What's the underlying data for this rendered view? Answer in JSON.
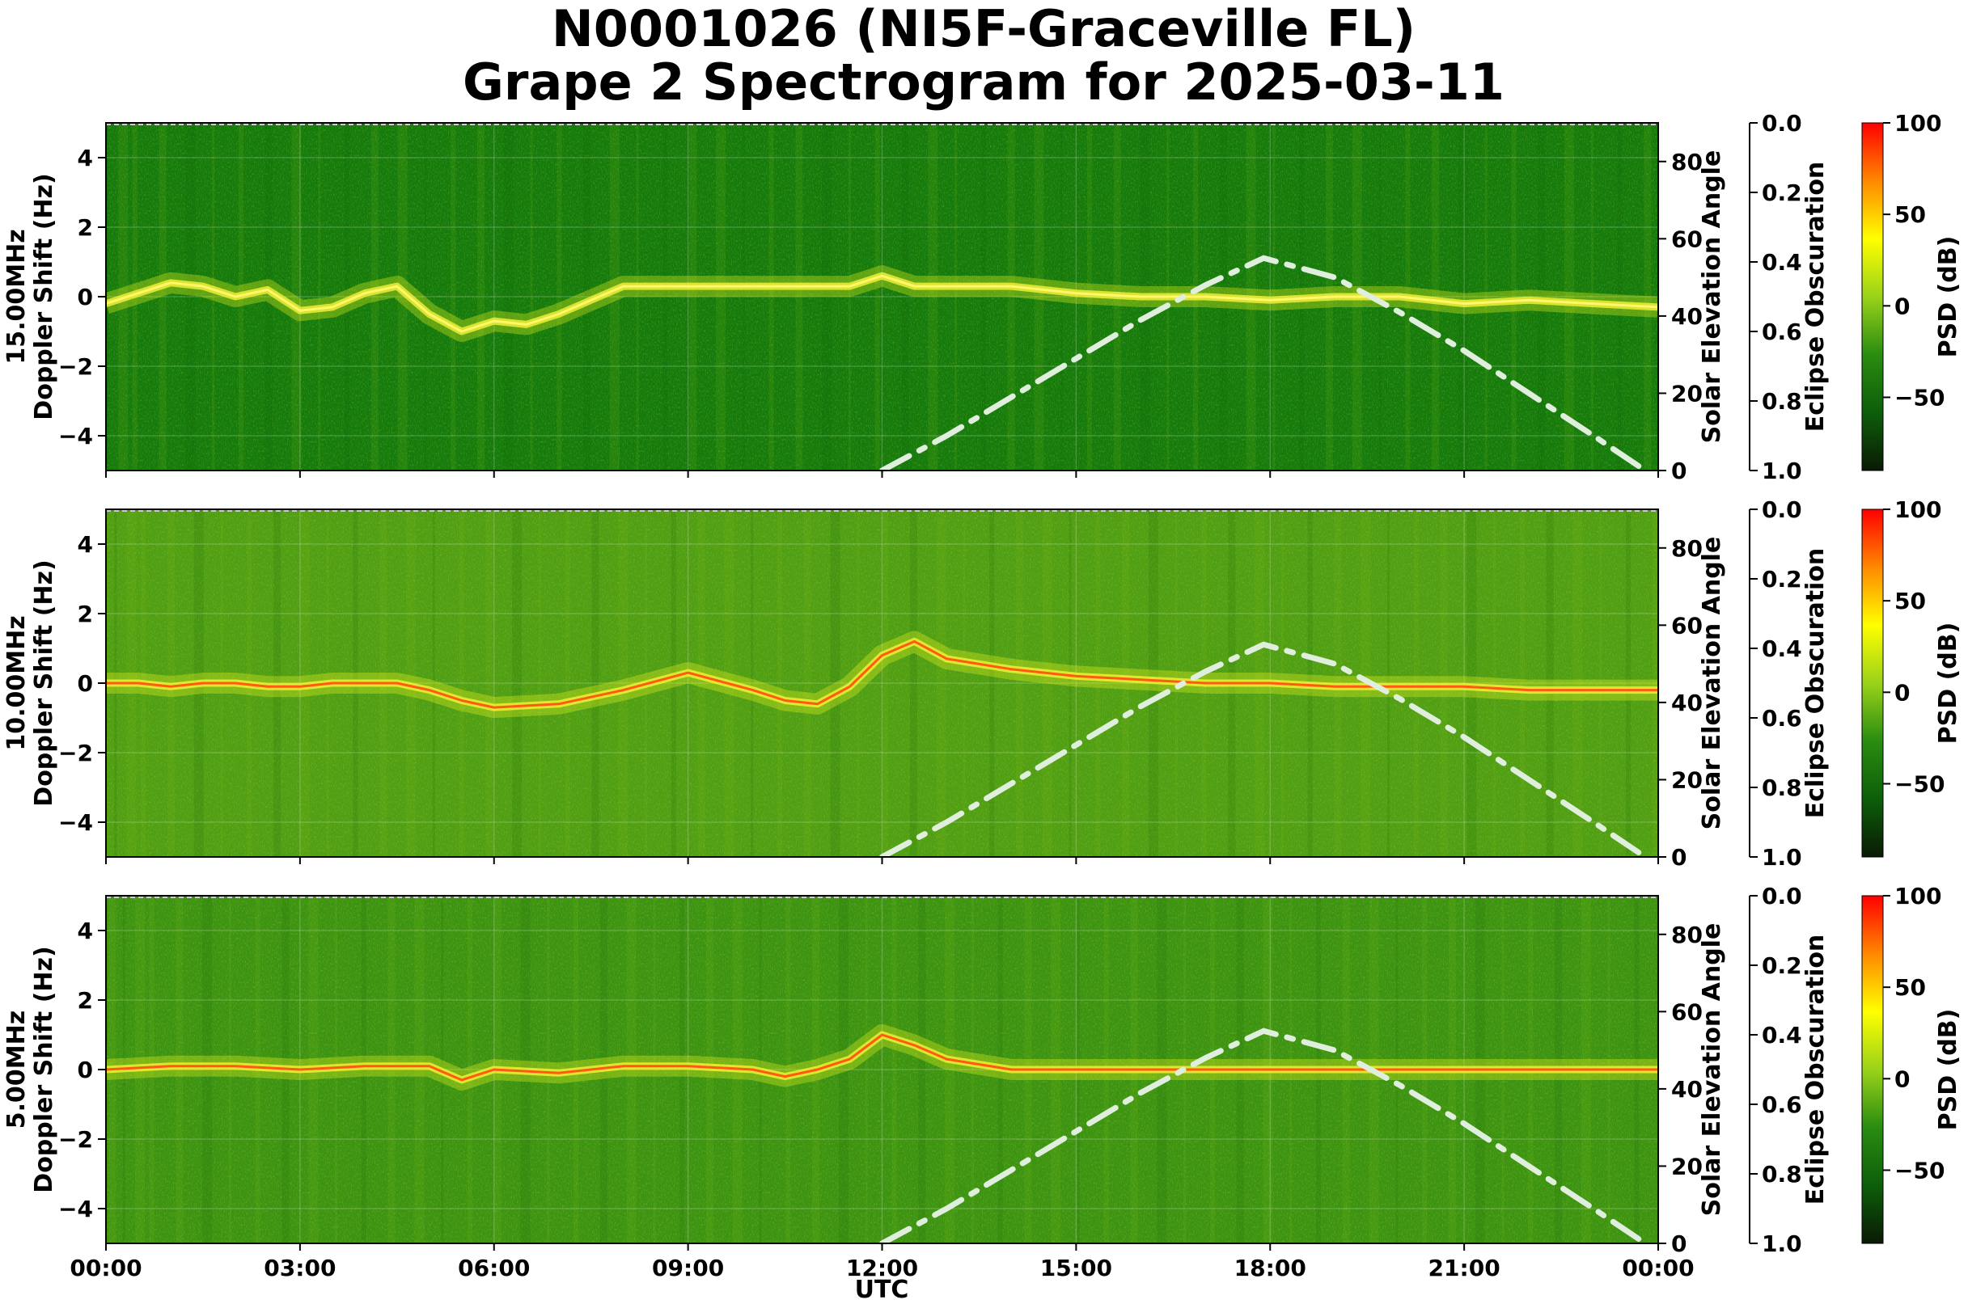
{
  "title_line1": "N0001026 (NI5F-Graceville FL)",
  "title_line2": "Grape 2 Spectrogram for 2025-03-11",
  "chart_data": {
    "type": "heatmap",
    "x_label": "UTC",
    "x_ticks": [
      "00:00",
      "03:00",
      "06:00",
      "09:00",
      "12:00",
      "15:00",
      "18:00",
      "21:00",
      "00:00"
    ],
    "x_range_hours": [
      0,
      24
    ],
    "y_range_hz": [
      -5,
      5
    ],
    "y_ticks": [
      "4",
      "2",
      "0",
      "−2",
      "−4"
    ],
    "y_ticks_values": [
      4,
      2,
      0,
      -2,
      -4
    ],
    "solar_elevation": {
      "label": "Solar Elevation Angle",
      "ticks": [
        "0",
        "20",
        "40",
        "60",
        "80"
      ],
      "tick_values": [
        0,
        20,
        40,
        60,
        80
      ],
      "range": [
        0,
        90
      ],
      "line_color": "#dfeedd",
      "x_hours": [
        12.0,
        13.0,
        14.0,
        15.0,
        16.0,
        17.0,
        17.9,
        19.0,
        20.0,
        21.0,
        22.0,
        23.0,
        23.8
      ],
      "y_deg": [
        0,
        9,
        19,
        29,
        39,
        48,
        55,
        50,
        41,
        31,
        20,
        9,
        0
      ]
    },
    "eclipse_obscuration": {
      "label": "Eclipse Obscuration",
      "ticks": [
        "0.0",
        "0.2",
        "0.4",
        "0.6",
        "0.8",
        "1.0"
      ],
      "tick_values": [
        0.0,
        0.2,
        0.4,
        0.6,
        0.8,
        1.0
      ]
    },
    "colorbar": {
      "label": "PSD (dB)",
      "ticks": [
        "100",
        "50",
        "0",
        "−50"
      ],
      "tick_values": [
        100,
        50,
        0,
        -50
      ],
      "range": [
        -90,
        100
      ],
      "colors": [
        "#0a1a05",
        "#0d5e0a",
        "#2a8c10",
        "#9ad21a",
        "#ffff00",
        "#ff8800",
        "#ff0000"
      ]
    },
    "panels": [
      {
        "frequency_label": "15.00MHz",
        "ylabel": "Doppler Shift (Hz)",
        "background": "#157a0c",
        "trace_x_hours": [
          0,
          0.5,
          1.0,
          1.5,
          2.0,
          2.5,
          3.0,
          3.5,
          4.0,
          4.5,
          5.0,
          5.5,
          6.0,
          6.5,
          7.0,
          7.5,
          8.0,
          11.5,
          12.0,
          12.5,
          13.0,
          14.0,
          15.0,
          16.0,
          17.0,
          18.0,
          19.0,
          20.0,
          21.0,
          22.0,
          23.0,
          24.0
        ],
        "trace_y_hz": [
          -0.2,
          0.1,
          0.4,
          0.3,
          0.0,
          0.2,
          -0.4,
          -0.3,
          0.1,
          0.3,
          -0.5,
          -1.0,
          -0.7,
          -0.8,
          -0.5,
          -0.1,
          0.3,
          0.3,
          0.6,
          0.3,
          0.3,
          0.3,
          0.1,
          0.0,
          0.0,
          -0.1,
          0.0,
          0.0,
          -0.2,
          -0.1,
          -0.2,
          -0.3
        ]
      },
      {
        "frequency_label": "10.00MHz",
        "ylabel": "Doppler Shift (Hz)",
        "background": "#4f9e14",
        "trace_x_hours": [
          0,
          0.5,
          1.0,
          1.5,
          2.0,
          2.5,
          3.0,
          3.5,
          4.0,
          4.5,
          5.0,
          5.5,
          6.0,
          7.0,
          8.0,
          9.0,
          10.0,
          10.5,
          11.0,
          11.5,
          12.0,
          12.5,
          13.0,
          14.0,
          15.0,
          16.0,
          17.0,
          18.0,
          19.0,
          20.0,
          21.0,
          22.0,
          23.0,
          24.0
        ],
        "trace_y_hz": [
          0.0,
          0.0,
          -0.1,
          0.0,
          0.0,
          -0.1,
          -0.1,
          0.0,
          0.0,
          0.0,
          -0.2,
          -0.5,
          -0.7,
          -0.6,
          -0.2,
          0.3,
          -0.2,
          -0.5,
          -0.6,
          -0.1,
          0.8,
          1.2,
          0.7,
          0.4,
          0.2,
          0.1,
          0.0,
          0.0,
          -0.1,
          -0.1,
          -0.1,
          -0.2,
          -0.2,
          -0.2
        ]
      },
      {
        "frequency_label": "5.00MHz",
        "ylabel": "Doppler Shift (Hz)",
        "background": "#3c9312",
        "trace_x_hours": [
          0,
          1.0,
          2.0,
          3.0,
          4.0,
          5.0,
          5.5,
          6.0,
          7.0,
          8.0,
          9.0,
          10.0,
          10.5,
          11.0,
          11.5,
          12.0,
          12.5,
          13.0,
          14.0,
          16.0,
          18.0,
          20.0,
          22.0,
          24.0
        ],
        "trace_y_hz": [
          0.0,
          0.1,
          0.1,
          0.0,
          0.1,
          0.1,
          -0.3,
          0.0,
          -0.1,
          0.1,
          0.1,
          0.0,
          -0.2,
          0.0,
          0.3,
          1.0,
          0.7,
          0.3,
          0.0,
          0.0,
          0.0,
          0.0,
          0.0,
          0.0
        ]
      }
    ]
  }
}
